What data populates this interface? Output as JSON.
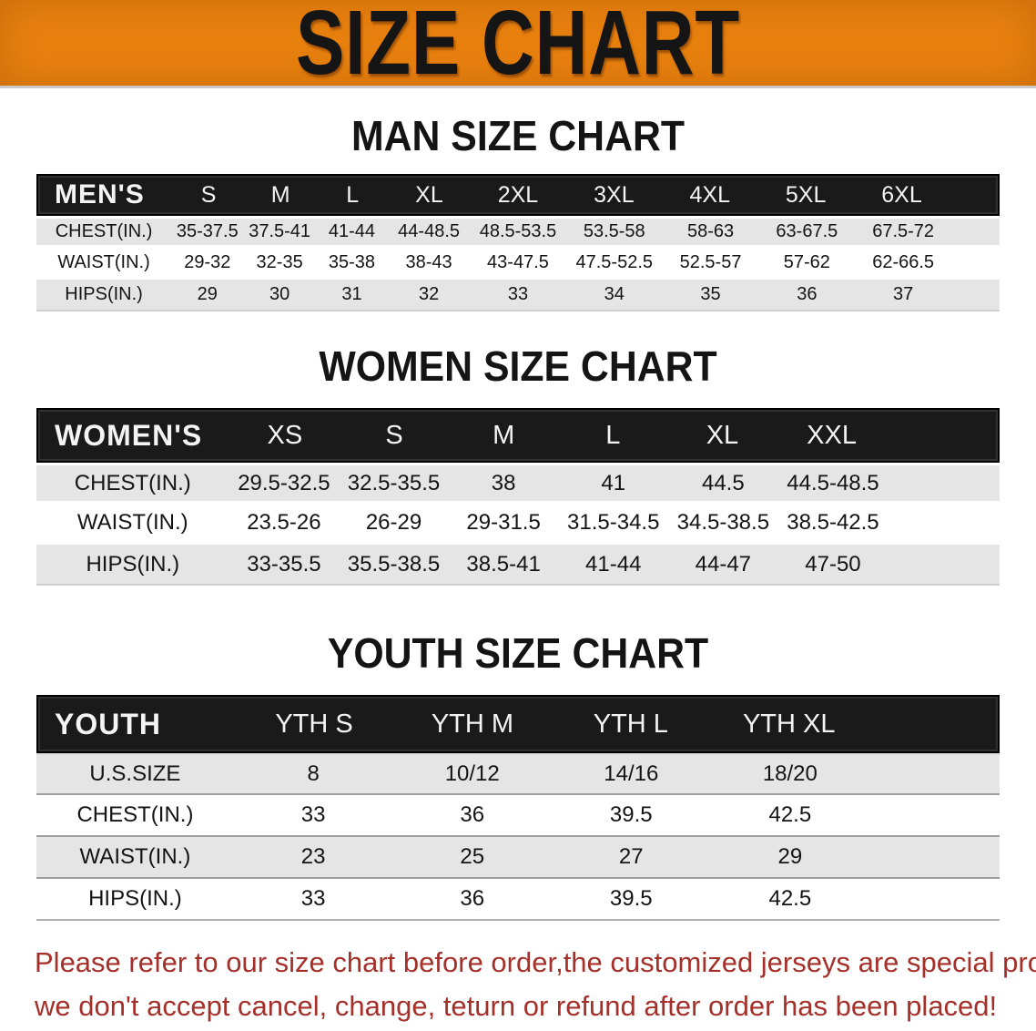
{
  "banner": {
    "title": "SIZE CHART"
  },
  "colors": {
    "banner_orange": "#e8810e",
    "header_black": "#1a1a1a",
    "row_gray": "#e5e5e5",
    "disclaimer_red": "#a5302a"
  },
  "sections": [
    {
      "heading": "MAN SIZE CHART",
      "table": {
        "label": "MEN'S",
        "columns": [
          "S",
          "M",
          "L",
          "XL",
          "2XL",
          "3XL",
          "4XL",
          "5XL",
          "6XL"
        ],
        "rows": [
          {
            "label": "CHEST(IN.)",
            "values": [
              "35-37.5",
              "37.5-41",
              "41-44",
              "44-48.5",
              "48.5-53.5",
              "53.5-58",
              "58-63",
              "63-67.5",
              "67.5-72"
            ]
          },
          {
            "label": "WAIST(IN.)",
            "values": [
              "29-32",
              "32-35",
              "35-38",
              "38-43",
              "43-47.5",
              "47.5-52.5",
              "52.5-57",
              "57-62",
              "62-66.5"
            ]
          },
          {
            "label": "HIPS(IN.)",
            "values": [
              "29",
              "30",
              "31",
              "32",
              "33",
              "34",
              "35",
              "36",
              "37"
            ]
          }
        ]
      }
    },
    {
      "heading": "WOMEN SIZE CHART",
      "table": {
        "label": "WOMEN'S",
        "columns": [
          "XS",
          "S",
          "M",
          "L",
          "XL",
          "XXL"
        ],
        "rows": [
          {
            "label": "CHEST(IN.)",
            "values": [
              "29.5-32.5",
              "32.5-35.5",
              "38",
              "41",
              "44.5",
              "44.5-48.5"
            ]
          },
          {
            "label": "WAIST(IN.)",
            "values": [
              "23.5-26",
              "26-29",
              "29-31.5",
              "31.5-34.5",
              "34.5-38.5",
              "38.5-42.5"
            ]
          },
          {
            "label": "HIPS(IN.)",
            "values": [
              "33-35.5",
              "35.5-38.5",
              "38.5-41",
              "41-44",
              "44-47",
              "47-50"
            ]
          }
        ]
      }
    },
    {
      "heading": "YOUTH SIZE CHART",
      "table": {
        "label": "YOUTH",
        "columns": [
          "YTH S",
          "YTH M",
          "YTH L",
          "YTH XL"
        ],
        "rows": [
          {
            "label": "U.S.SIZE",
            "values": [
              "8",
              "10/12",
              "14/16",
              "18/20"
            ]
          },
          {
            "label": "CHEST(IN.)",
            "values": [
              "33",
              "36",
              "39.5",
              "42.5"
            ]
          },
          {
            "label": "WAIST(IN.)",
            "values": [
              "23",
              "25",
              "27",
              "29"
            ]
          },
          {
            "label": "HIPS(IN.)",
            "values": [
              "33",
              "36",
              "39.5",
              "42.5"
            ]
          }
        ]
      }
    }
  ],
  "disclaimer": {
    "line1": "Please refer to our size chart before order,the customized jerseys are special products,",
    "line2": "we don't accept cancel, change, teturn or refund after order has been placed!"
  }
}
